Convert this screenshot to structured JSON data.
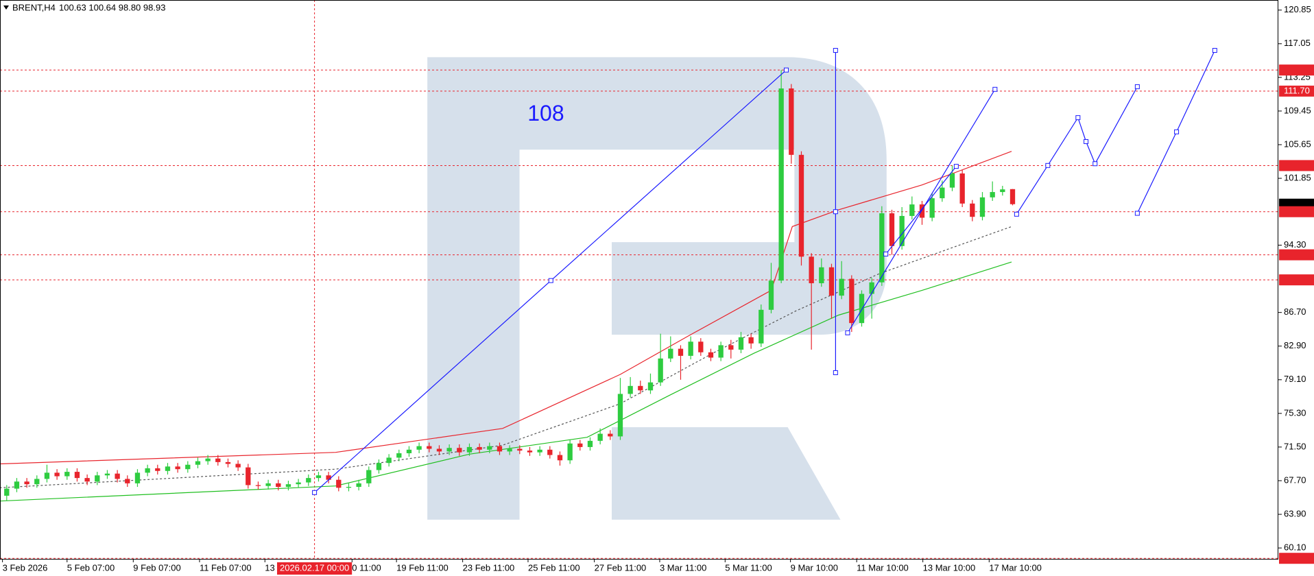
{
  "chart_data": {
    "type": "candlestick",
    "title": "BRENT,H4",
    "subtitle": "100.63 100.64 98.80 98.93",
    "up_color": "#2ecc40",
    "down_color": "#e8242c",
    "xlim": [
      -0.667,
      126.42
    ],
    "ylim": [
      58.87,
      121.99
    ],
    "yticks": [
      120.85,
      117.05,
      113.25,
      109.45,
      105.65,
      101.85,
      {
        "value": 94.3,
        "label": "94.30"
      },
      {
        "value": 86.7,
        "label": "86.70"
      },
      {
        "value": 82.9,
        "label": "82.90"
      },
      {
        "value": 79.1,
        "label": "79.10"
      },
      {
        "value": 75.3,
        "label": "75.30"
      },
      {
        "value": 71.5,
        "label": "71.50"
      },
      {
        "value": 67.7,
        "label": "67.70"
      },
      {
        "value": 63.9,
        "label": "63.90"
      },
      {
        "value": 60.1,
        "label": "60.10"
      }
    ],
    "xticks": [
      {
        "value": -0.42,
        "label": "3 Feb 2026"
      },
      {
        "value": 6.0,
        "label": "5 Feb 07:00"
      },
      {
        "value": 12.58,
        "label": "9 Feb 07:00"
      },
      {
        "value": 19.17,
        "label": "11 Feb 07:00"
      },
      {
        "value": 25.67,
        "label": "13"
      },
      {
        "value": 34.33,
        "label": "0 11:00"
      },
      {
        "value": 38.75,
        "label": "19 Feb 11:00"
      },
      {
        "value": 45.33,
        "label": "23 Feb 11:00"
      },
      {
        "value": 51.83,
        "label": "25 Feb 11:00"
      },
      {
        "value": 58.42,
        "label": "27 Feb 11:00"
      },
      {
        "value": 64.92,
        "label": "3 Mar 11:00"
      },
      {
        "value": 71.42,
        "label": "5 Mar 11:00"
      },
      {
        "value": 77.92,
        "label": "9 Mar 10:00"
      },
      {
        "value": 84.5,
        "label": "11 Mar 10:00"
      },
      {
        "value": 91.08,
        "label": "13 Mar 10:00"
      },
      {
        "value": 97.67,
        "label": "17 Mar 10:00"
      }
    ],
    "crosshair": {
      "value": 30.6,
      "label": "2026.02.17 00:00",
      "color": "#e8242c"
    },
    "open": [
      66.0,
      66.8,
      67.6,
      67.3,
      67.9,
      68.6,
      68.2,
      68.7,
      68.0,
      67.6,
      68.3,
      68.5,
      67.9,
      67.4,
      68.6,
      69.1,
      68.8,
      69.3,
      69.0,
      69.5,
      69.9,
      70.2,
      69.8,
      69.6,
      69.2,
      67.2,
      67.1,
      67.4,
      67.0,
      67.3,
      67.5,
      68.0,
      68.3,
      67.8,
      66.9,
      67.0,
      67.4,
      68.9,
      69.7,
      70.3,
      70.8,
      71.2,
      71.6,
      71.3,
      71.0,
      71.4,
      70.9,
      71.5,
      71.2,
      71.6,
      71.0,
      71.3,
      71.1,
      70.9,
      71.2,
      70.6,
      70.0,
      71.9,
      71.5,
      72.2,
      73.0,
      72.7,
      77.5,
      78.4,
      77.9,
      78.8,
      81.5,
      82.6,
      81.8,
      83.4,
      82.2,
      81.6,
      83.0,
      82.5,
      83.9,
      83.2,
      87.0,
      90.3,
      112.0,
      104.5,
      93.0,
      90.0,
      91.8,
      88.6,
      90.5,
      85.5,
      88.8,
      90.1,
      97.9,
      94.2,
      97.6,
      98.9,
      97.4,
      99.6,
      100.8,
      102.4,
      99.0,
      97.5,
      99.7,
      100.3,
      100.63
    ],
    "high": [
      67.2,
      68.0,
      68.0,
      68.3,
      69.5,
      69.0,
      69.1,
      69.1,
      68.4,
      68.7,
      68.9,
      68.9,
      68.3,
      69.0,
      69.5,
      69.5,
      69.7,
      69.7,
      69.9,
      70.3,
      70.6,
      70.6,
      70.2,
      70.0,
      69.6,
      67.6,
      67.8,
      67.8,
      67.7,
      67.9,
      68.4,
      68.7,
      68.7,
      68.2,
      67.4,
      67.8,
      69.3,
      70.1,
      70.7,
      71.2,
      71.6,
      72.0,
      72.0,
      71.7,
      71.8,
      71.8,
      71.9,
      71.9,
      72.0,
      72.0,
      71.7,
      71.7,
      71.5,
      71.6,
      71.6,
      71.0,
      72.3,
      72.3,
      72.6,
      73.6,
      73.4,
      79.3,
      79.4,
      79.0,
      79.8,
      84.3,
      84.0,
      83.0,
      84.0,
      83.8,
      82.6,
      83.4,
      83.6,
      84.5,
      84.3,
      87.6,
      92.3,
      114.08,
      112.5,
      104.9,
      93.4,
      92.8,
      92.2,
      92.5,
      90.9,
      89.2,
      90.6,
      98.7,
      98.3,
      98.6,
      99.8,
      99.3,
      100.2,
      101.6,
      103.29,
      102.8,
      99.4,
      100.3,
      101.5,
      101.0,
      100.64
    ],
    "low": [
      65.4,
      66.4,
      66.9,
      66.9,
      67.5,
      67.8,
      67.8,
      67.6,
      67.2,
      67.2,
      67.9,
      67.5,
      67.0,
      67.0,
      68.2,
      68.4,
      68.4,
      68.6,
      68.6,
      69.1,
      69.5,
      69.4,
      69.2,
      68.8,
      66.8,
      66.7,
      66.7,
      66.6,
      66.6,
      66.9,
      67.1,
      67.6,
      67.4,
      66.5,
      66.5,
      66.6,
      67.0,
      68.5,
      69.3,
      69.9,
      70.4,
      70.8,
      70.9,
      70.6,
      70.6,
      70.5,
      70.5,
      70.8,
      70.8,
      70.6,
      70.6,
      70.7,
      70.5,
      70.5,
      70.2,
      69.4,
      69.6,
      71.1,
      71.1,
      71.8,
      72.3,
      72.3,
      77.1,
      77.5,
      77.5,
      78.4,
      81.1,
      79.1,
      81.4,
      81.8,
      81.2,
      81.2,
      81.5,
      82.1,
      82.6,
      82.8,
      86.6,
      90.0,
      103.5,
      92.0,
      82.5,
      89.6,
      86.0,
      88.2,
      84.5,
      85.1,
      86.0,
      89.7,
      93.21,
      93.8,
      97.2,
      96.6,
      97.0,
      99.2,
      100.4,
      98.6,
      97.0,
      97.1,
      99.3,
      99.9,
      98.8
    ],
    "close": [
      66.8,
      67.6,
      67.3,
      67.9,
      68.6,
      68.2,
      68.7,
      68.0,
      67.6,
      68.3,
      68.5,
      67.9,
      67.4,
      68.6,
      69.1,
      68.8,
      69.3,
      69.0,
      69.5,
      69.9,
      70.2,
      69.8,
      69.6,
      69.2,
      67.2,
      67.1,
      67.4,
      67.0,
      67.3,
      67.5,
      68.0,
      68.3,
      67.8,
      66.9,
      67.0,
      67.4,
      68.9,
      69.7,
      70.3,
      70.8,
      71.2,
      71.6,
      71.3,
      71.0,
      71.4,
      70.9,
      71.5,
      71.2,
      71.6,
      71.0,
      71.3,
      71.1,
      70.9,
      71.2,
      70.6,
      70.0,
      71.9,
      71.5,
      72.2,
      73.0,
      72.7,
      77.5,
      78.4,
      77.9,
      78.8,
      81.5,
      82.6,
      81.8,
      83.4,
      82.2,
      81.6,
      83.0,
      82.5,
      83.9,
      83.2,
      87.0,
      90.3,
      112.0,
      104.5,
      93.0,
      90.0,
      91.8,
      88.6,
      90.5,
      85.5,
      88.8,
      90.1,
      97.9,
      94.2,
      97.6,
      98.9,
      97.4,
      99.6,
      100.8,
      102.4,
      99.0,
      97.5,
      99.7,
      100.3,
      100.6,
      98.93
    ],
    "lines": [
      {
        "color": "#e8242c",
        "dashed": false,
        "x": [
          -0.7,
          32.7,
          49.3,
          61.0,
          67.7,
          76.0,
          77.0,
          78.1,
          82.7,
          91.0,
          99.9
        ],
        "values": [
          69.6,
          70.9,
          73.6,
          79.7,
          84.0,
          89.2,
          92.6,
          96.4,
          98.3,
          101.1,
          104.9
        ]
      },
      {
        "color": "#1fbf1f",
        "dashed": false,
        "x": [
          -0.7,
          32.7,
          46.0,
          57.7,
          66.0,
          74.3,
          82.7,
          91.0,
          99.9
        ],
        "values": [
          65.4,
          67.1,
          70.7,
          72.6,
          77.4,
          82.1,
          86.4,
          89.2,
          92.4
        ]
      },
      {
        "color": "#555555",
        "dashed": true,
        "x": [
          -0.7,
          32.7,
          49.3,
          61.0,
          70.2,
          78.5,
          86.8,
          99.9
        ],
        "values": [
          66.9,
          69.0,
          71.7,
          76.4,
          82.1,
          86.9,
          91.1,
          96.4
        ]
      }
    ],
    "levels": [
      {
        "value": 114.08,
        "color": "#e8242c",
        "line": true
      },
      {
        "value": 111.7,
        "label": "111.70",
        "color": "#e8242c",
        "line": true
      },
      {
        "value": 103.29,
        "color": "#e8242c",
        "line": true
      },
      {
        "value": 98.93,
        "color": "#000000",
        "line": false
      },
      {
        "value": 98.08,
        "color": "#e8242c",
        "line": true
      },
      {
        "value": 93.21,
        "color": "#e8242c",
        "line": true
      },
      {
        "value": 90.38,
        "color": "#e8242c",
        "line": true
      },
      {
        "value": 58.93,
        "color": "#e8242c",
        "line": true
      }
    ],
    "drawings_color": "#1a1aff",
    "drawings": [
      {
        "x": [
          30.6,
          54.1,
          77.5
        ],
        "values": [
          66.36,
          90.3,
          114.08
        ]
      },
      {
        "x": [
          82.4,
          82.4,
          82.4
        ],
        "values": [
          116.3,
          98.08,
          79.9
        ]
      },
      {
        "x": [
          83.6,
          98.25
        ],
        "values": [
          84.4,
          111.9
        ]
      },
      {
        "x": [
          87.4,
          94.4
        ],
        "values": [
          93.3,
          103.2
        ]
      },
      {
        "x": [
          100.4,
          103.5,
          106.5,
          107.3,
          108.2,
          112.4
        ],
        "values": [
          97.8,
          103.3,
          108.7,
          106.0,
          103.5,
          112.2
        ]
      },
      {
        "x": [
          112.4,
          116.3,
          120.1
        ],
        "values": [
          97.9,
          107.1,
          116.3
        ]
      }
    ],
    "annotations": [
      {
        "text": "108",
        "x": 53.6,
        "y": 109.0,
        "color": "#1a1aff"
      }
    ]
  }
}
